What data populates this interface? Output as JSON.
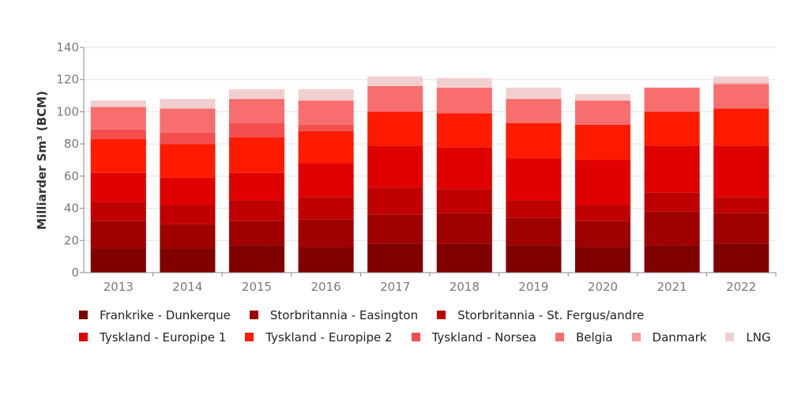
{
  "chart_data": {
    "type": "bar",
    "stacked": true,
    "title": "",
    "xlabel": "",
    "ylabel": "Milliarder Sm³ (BCM)",
    "ylim": [
      0,
      140
    ],
    "yticks": [
      0,
      20,
      40,
      60,
      80,
      100,
      120,
      140
    ],
    "grid": true,
    "legend_position": "bottom",
    "categories": [
      "2013",
      "2014",
      "2015",
      "2016",
      "2017",
      "2018",
      "2019",
      "2020",
      "2021",
      "2022"
    ],
    "series": [
      {
        "name": "Frankrike - Dunkerque",
        "color": "#800000",
        "values": [
          15,
          15,
          17,
          16,
          18,
          18,
          17,
          16,
          17,
          18
        ]
      },
      {
        "name": "Storbritannia - Easington",
        "color": "#a00000",
        "values": [
          17,
          15,
          15,
          17,
          18,
          19,
          17,
          16,
          21,
          19
        ]
      },
      {
        "name": "Storbritannia - St. Fergus/andre",
        "color": "#c00000",
        "values": [
          12,
          12,
          13,
          14,
          17,
          15,
          11,
          10,
          12,
          10
        ]
      },
      {
        "name": "Tyskland - Europipe 1",
        "color": "#e00000",
        "values": [
          18,
          17,
          17,
          21,
          26,
          26,
          26,
          28,
          29,
          32
        ]
      },
      {
        "name": "Tyskland - Europipe 2",
        "color": "#ff1a00",
        "values": [
          21,
          21,
          22,
          20,
          21,
          21,
          22,
          22,
          21,
          23
        ]
      },
      {
        "name": "Tyskland - Norsea",
        "color": "#f54e4e",
        "values": [
          6,
          7,
          9,
          4,
          0,
          0,
          0,
          0,
          0,
          0
        ]
      },
      {
        "name": "Belgia",
        "color": "#f86e6e",
        "values": [
          14,
          15,
          15,
          15,
          16,
          16,
          15,
          15,
          15,
          15
        ]
      },
      {
        "name": "Danmark",
        "color": "#fa9b9b",
        "values": [
          0,
          0,
          0,
          0,
          0,
          0,
          0,
          0,
          0,
          1
        ]
      },
      {
        "name": "LNG",
        "color": "#f2cfcf",
        "values": [
          4,
          6,
          6,
          7,
          6,
          6,
          7,
          4,
          0,
          4
        ]
      }
    ]
  }
}
